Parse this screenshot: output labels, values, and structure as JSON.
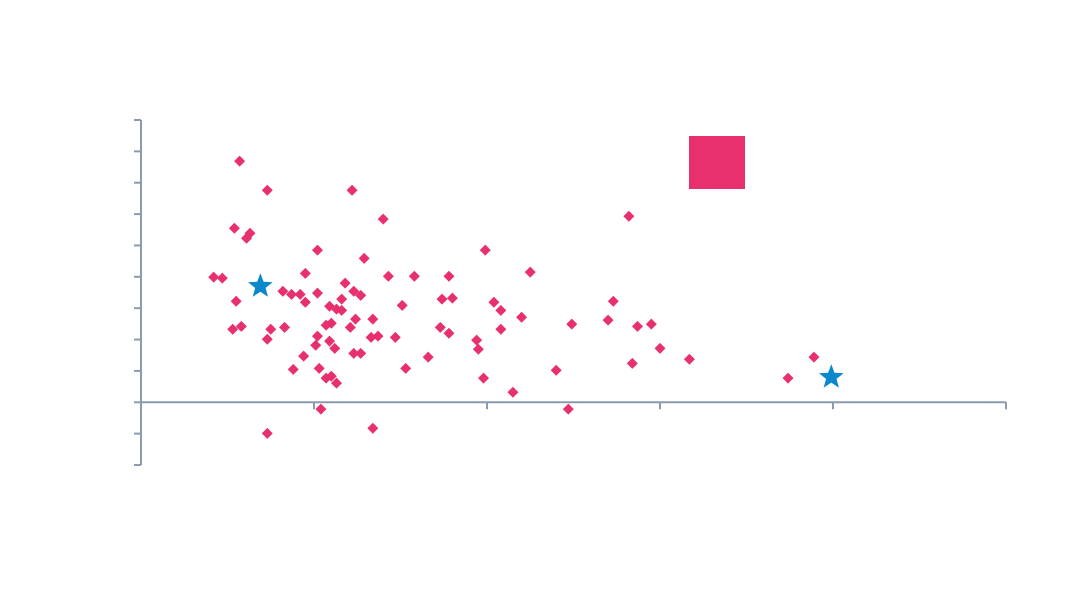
{
  "chart_data": {
    "type": "scatter",
    "xlim": [
      0,
      5
    ],
    "ylim": [
      -2,
      9
    ],
    "xticks": [
      0,
      1,
      2,
      3,
      4,
      5
    ],
    "yticks": [
      -2,
      -1,
      0,
      1,
      2,
      3,
      4,
      5,
      6,
      7,
      8,
      9
    ],
    "legend": "top-right",
    "series": [
      {
        "color": "#e8306e",
        "marker": "diamond",
        "x": [
          0.57,
          0.73,
          1.22,
          1.4,
          2.82,
          0.54,
          0.63,
          0.61,
          1.02,
          1.99,
          1.29,
          0.42,
          0.47,
          0.95,
          1.43,
          1.58,
          1.78,
          2.25,
          1.18,
          0.82,
          0.87,
          0.92,
          1.02,
          1.23,
          1.27,
          0.55,
          0.95,
          1.16,
          1.09,
          1.13,
          1.16,
          1.51,
          1.74,
          1.8,
          2.04,
          2.08,
          2.73,
          2.2,
          1.24,
          1.34,
          1.07,
          1.1,
          1.21,
          0.53,
          0.58,
          0.75,
          0.83,
          1.73,
          1.78,
          2.08,
          2.49,
          2.7,
          2.87,
          2.95,
          1.02,
          0.73,
          1.09,
          1.01,
          1.12,
          1.33,
          1.37,
          1.47,
          1.94,
          1.95,
          3.0,
          0.94,
          1.23,
          1.27,
          1.66,
          3.17,
          0.88,
          1.03,
          1.53,
          2.4,
          2.84,
          3.89,
          1.07,
          1.1,
          1.13,
          1.98,
          3.74,
          2.15,
          1.04,
          2.47,
          0.73,
          1.34
        ],
        "values": [
          7.69,
          6.76,
          6.76,
          5.84,
          5.93,
          5.55,
          5.39,
          5.23,
          4.85,
          4.85,
          4.59,
          3.99,
          3.96,
          4.11,
          4.02,
          4.02,
          4.02,
          4.15,
          3.8,
          3.54,
          3.44,
          3.44,
          3.48,
          3.54,
          3.41,
          3.22,
          3.19,
          3.29,
          3.06,
          2.97,
          2.93,
          3.09,
          3.29,
          3.32,
          3.19,
          2.93,
          3.22,
          2.71,
          2.65,
          2.65,
          2.46,
          2.52,
          2.39,
          2.33,
          2.42,
          2.33,
          2.39,
          2.39,
          2.2,
          2.33,
          2.49,
          2.62,
          2.42,
          2.49,
          2.11,
          2.01,
          1.95,
          1.82,
          1.72,
          2.07,
          2.11,
          2.07,
          1.98,
          1.69,
          1.72,
          1.47,
          1.56,
          1.56,
          1.44,
          1.37,
          1.05,
          1.08,
          1.08,
          1.02,
          1.24,
          1.44,
          0.77,
          0.83,
          0.61,
          0.77,
          0.77,
          0.32,
          -0.22,
          -0.22,
          -0.99,
          -0.83
        ]
      },
      {
        "color": "#0a88cc",
        "marker": "star",
        "x": [
          0.69,
          3.99
        ],
        "values": [
          3.7,
          0.8
        ]
      }
    ]
  }
}
